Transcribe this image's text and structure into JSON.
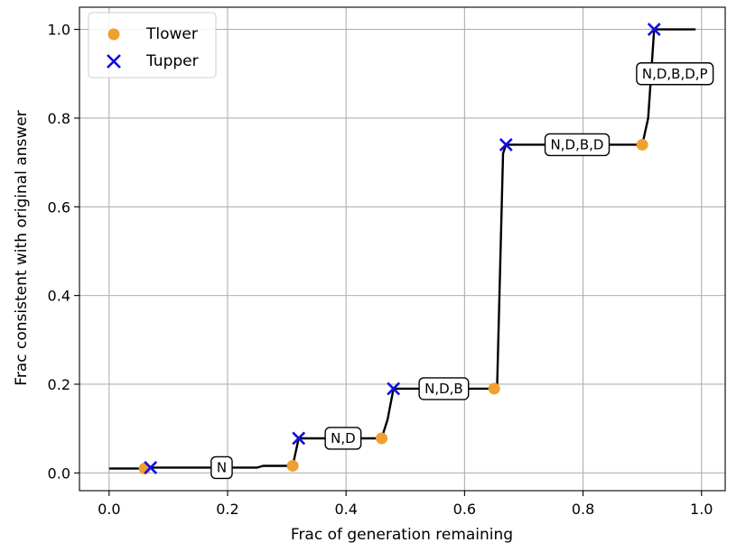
{
  "chart_data": {
    "type": "line",
    "title": "",
    "xlabel": "Frac of generation remaining",
    "ylabel": "Frac consistent with original answer",
    "xlim": [
      -0.05,
      1.04
    ],
    "ylim": [
      -0.04,
      1.05
    ],
    "xticks": [
      0.0,
      0.2,
      0.4,
      0.6,
      0.8,
      1.0
    ],
    "xtick_labels": [
      "0.0",
      "0.2",
      "0.4",
      "0.6",
      "0.8",
      "1.0"
    ],
    "yticks": [
      0.0,
      0.2,
      0.4,
      0.6,
      0.8,
      1.0
    ],
    "ytick_labels": [
      "0.0",
      "0.2",
      "0.4",
      "0.6",
      "0.8",
      "1.0"
    ],
    "grid": true,
    "legend_position": "top-left",
    "curve": {
      "color": "#000000",
      "x": [
        0.0,
        0.06,
        0.07,
        0.25,
        0.26,
        0.31,
        0.32,
        0.46,
        0.47,
        0.48,
        0.65,
        0.655,
        0.665,
        0.67,
        0.9,
        0.91,
        0.92,
        0.99
      ],
      "y": [
        0.01,
        0.01,
        0.012,
        0.012,
        0.016,
        0.016,
        0.078,
        0.078,
        0.12,
        0.19,
        0.19,
        0.2,
        0.72,
        0.74,
        0.74,
        0.8,
        1.0,
        1.0
      ]
    },
    "series": [
      {
        "name": "Tlower",
        "marker": "circle",
        "color": "#f0a030",
        "x": [
          0.06,
          0.31,
          0.46,
          0.65,
          0.9
        ],
        "y": [
          0.01,
          0.016,
          0.078,
          0.19,
          0.74
        ]
      },
      {
        "name": "Tupper",
        "marker": "x",
        "color": "#1010e0",
        "x": [
          0.07,
          0.32,
          0.48,
          0.67,
          0.92
        ],
        "y": [
          0.012,
          0.078,
          0.19,
          0.74,
          1.0
        ]
      }
    ],
    "stage_labels": [
      {
        "text": "N",
        "x": 0.19,
        "y": 0.012
      },
      {
        "text": "N,D",
        "x": 0.395,
        "y": 0.078
      },
      {
        "text": "N,D,B",
        "x": 0.565,
        "y": 0.19
      },
      {
        "text": "N,D,B,D",
        "x": 0.79,
        "y": 0.74
      },
      {
        "text": "N,D,B,D,P",
        "x": 0.955,
        "y": 0.9
      }
    ]
  }
}
